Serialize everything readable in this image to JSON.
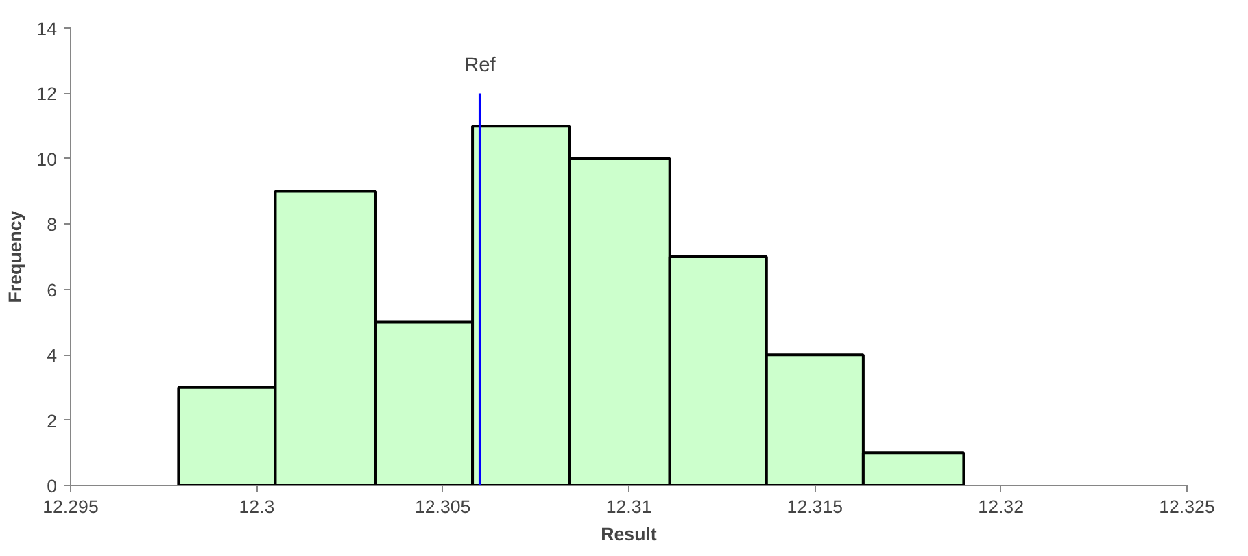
{
  "chart_data": {
    "type": "histogram",
    "xlabel": "Result",
    "ylabel": "Frequency",
    "bins": [
      12.2979,
      12.3005,
      12.3032,
      12.3058,
      12.3084,
      12.3111,
      12.3137,
      12.3163,
      12.319
    ],
    "values": [
      3,
      9,
      5,
      11,
      10,
      7,
      4,
      1
    ],
    "color": "#ccffcc",
    "series": [
      {
        "type": "line",
        "name": "Ref",
        "color": "#0000ff",
        "x": [
          12.306,
          12.306
        ],
        "values": [
          0,
          12
        ]
      }
    ],
    "xlim": [
      12.295,
      12.325
    ],
    "xticks": [
      12.295,
      12.3,
      12.305,
      12.31,
      12.315,
      12.32,
      12.325
    ],
    "ylim": [
      0,
      14
    ],
    "yticks": [
      0,
      2,
      4,
      6,
      8,
      10,
      12,
      14
    ],
    "grid": false
  }
}
